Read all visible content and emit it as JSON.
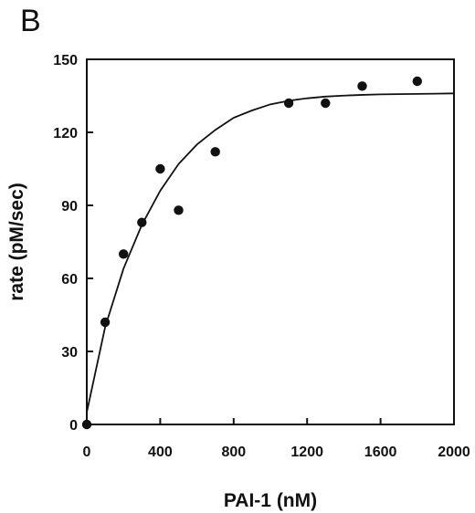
{
  "chart_data": {
    "type": "scatter",
    "panel_label": "B",
    "title": "",
    "xlabel": "PAI-1 (nM)",
    "ylabel": "rate (pM/sec)",
    "xlim": [
      0,
      2000
    ],
    "ylim": [
      0,
      150
    ],
    "x_ticks": [
      0,
      400,
      800,
      1200,
      1600,
      2000
    ],
    "y_ticks": [
      0,
      30,
      60,
      90,
      120,
      150
    ],
    "grid": false,
    "legend": "none",
    "series": [
      {
        "kind": "points",
        "marker_color": "#111111",
        "x": [
          0,
          100,
          200,
          300,
          400,
          500,
          700,
          1100,
          1300,
          1500,
          1800
        ],
        "y": [
          0,
          42,
          70,
          83,
          105,
          88,
          112,
          132,
          132,
          139,
          141
        ]
      },
      {
        "kind": "fitted_curve",
        "line_color": "#111111",
        "x": [
          0,
          100,
          200,
          300,
          400,
          500,
          600,
          700,
          800,
          900,
          1000,
          1100,
          1200,
          1300,
          1400,
          1500,
          1600,
          1700,
          1800,
          1900,
          2000
        ],
        "y": [
          5,
          40,
          64,
          82,
          96,
          107,
          115,
          121,
          126,
          129,
          131.5,
          133,
          134,
          134.7,
          135.1,
          135.4,
          135.6,
          135.7,
          135.8,
          135.9,
          136
        ]
      }
    ]
  }
}
